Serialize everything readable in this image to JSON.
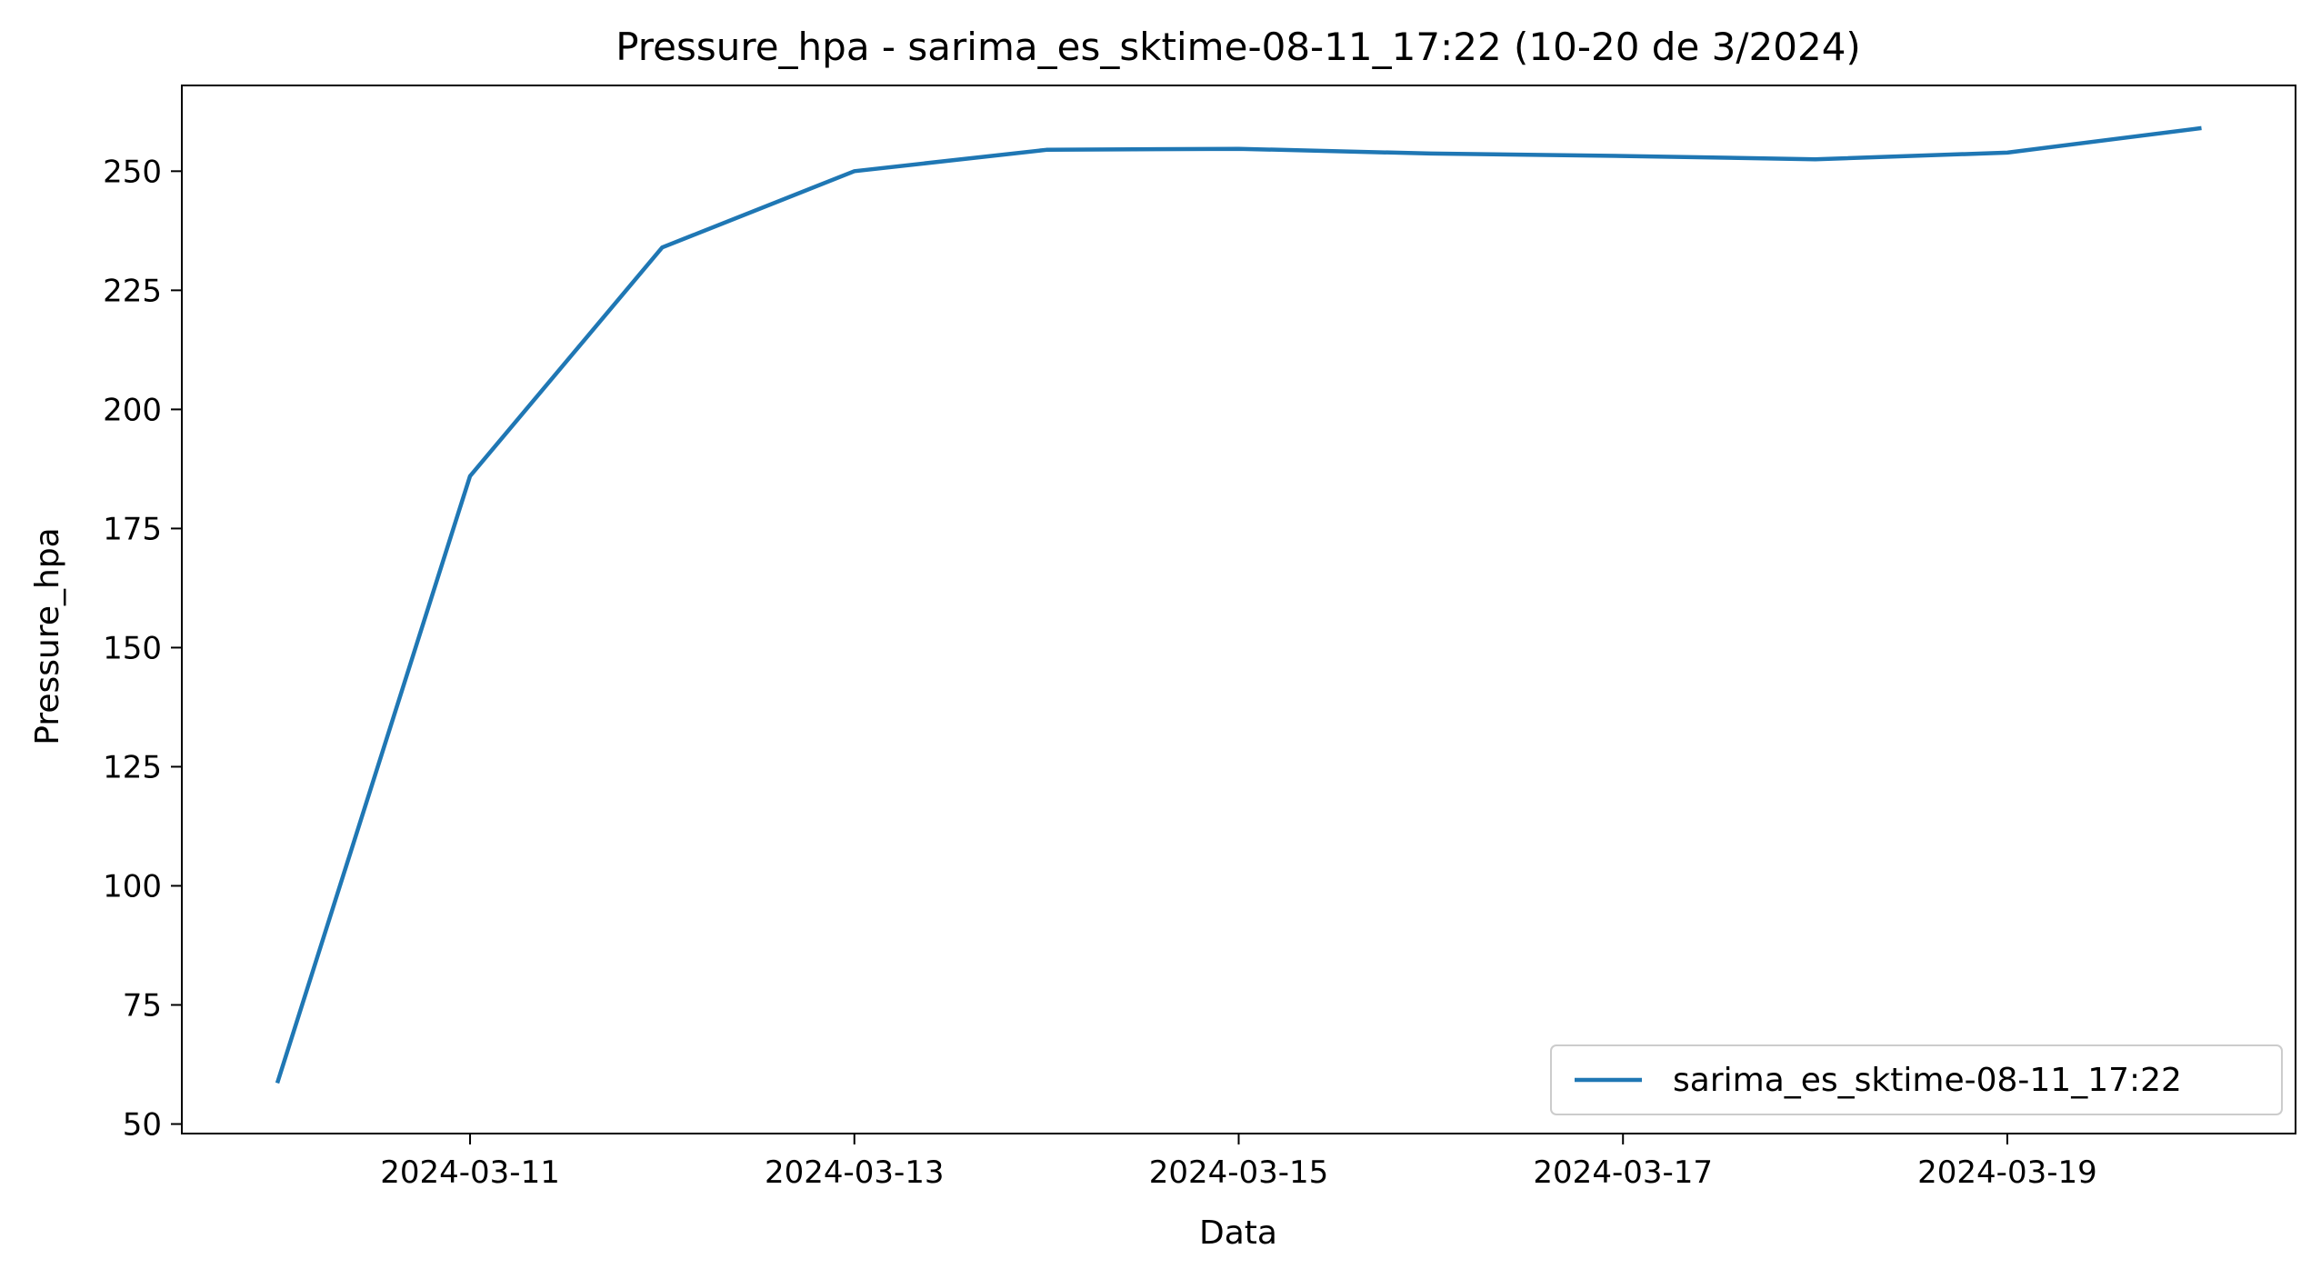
{
  "chart_data": {
    "type": "line",
    "title": "Pressure_hpa - sarima_es_sktime-08-11_17:22 (10-20 de 3/2024)",
    "xlabel": "Data",
    "ylabel": "Pressure_hpa",
    "x": [
      "2024-03-10",
      "2024-03-11",
      "2024-03-12",
      "2024-03-13",
      "2024-03-14",
      "2024-03-15",
      "2024-03-16",
      "2024-03-17",
      "2024-03-18",
      "2024-03-19",
      "2024-03-20"
    ],
    "xticks": [
      "2024-03-11",
      "2024-03-13",
      "2024-03-15",
      "2024-03-17",
      "2024-03-19"
    ],
    "yticks": [
      50,
      75,
      100,
      125,
      150,
      175,
      200,
      225,
      250
    ],
    "ylim": [
      48,
      268
    ],
    "xlim": [
      "2024-03-09 12:00",
      "2024-03-20 12:00"
    ],
    "grid": false,
    "legend_position": "lower-right",
    "series": [
      {
        "name": "sarima_es_sktime-08-11_17:22",
        "color": "#1f77b4",
        "values": [
          59,
          186,
          234,
          250,
          254.5,
          254.7,
          253.7,
          253.2,
          252.5,
          253.9,
          259
        ]
      }
    ]
  }
}
